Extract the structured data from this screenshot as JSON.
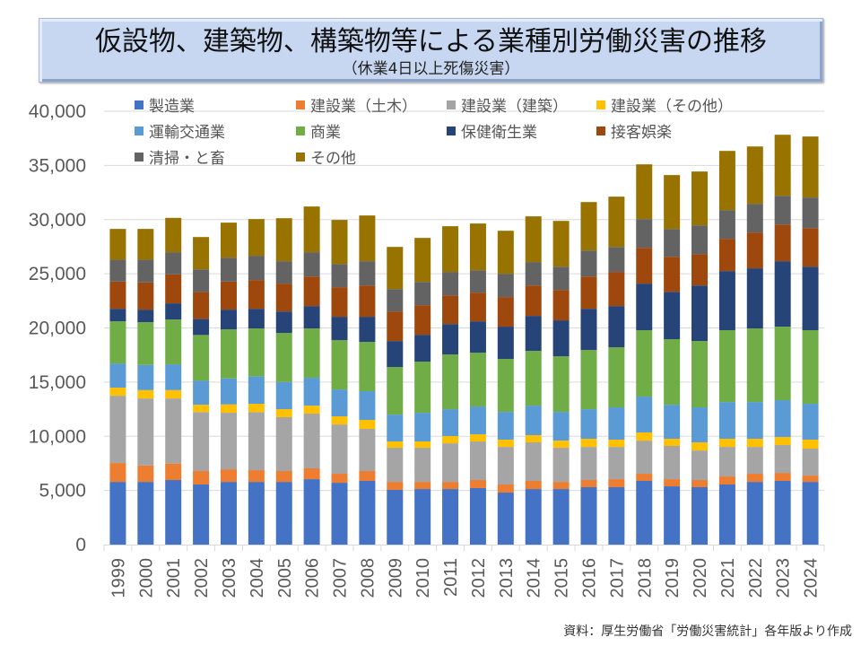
{
  "header": {
    "title": "仮設物、建築物、構築物等による業種別労働災害の推移",
    "subtitle": "（休業4日以上死傷災害）"
  },
  "footer": {
    "source": "資料：厚生労働省「労働災害統計」各年版より作成"
  },
  "chart_data": {
    "type": "bar",
    "stacked": true,
    "title": "仮設物、建築物、構築物等による業種別労働災害の推移",
    "subtitle": "（休業4日以上死傷災害）",
    "xlabel": "",
    "ylabel": "",
    "ylim": [
      0,
      40000
    ],
    "yticks": [
      0,
      5000,
      10000,
      15000,
      20000,
      25000,
      30000,
      35000,
      40000
    ],
    "ytick_labels": [
      "0",
      "5,000",
      "10,000",
      "15,000",
      "20,000",
      "25,000",
      "30,000",
      "35,000",
      "40,000"
    ],
    "grid": true,
    "legend_position": "top",
    "categories": [
      "1999",
      "2000",
      "2001",
      "2002",
      "2003",
      "2004",
      "2005",
      "2006",
      "2007",
      "2008",
      "2009",
      "2010",
      "2011",
      "2012",
      "2013",
      "2014",
      "2015",
      "2016",
      "2017",
      "2018",
      "2019",
      "2020",
      "2021",
      "2022",
      "2023",
      "2024"
    ],
    "series": [
      {
        "name": "製造業",
        "color": "#4472C4",
        "values": [
          5790,
          5790,
          5960,
          5550,
          5790,
          5790,
          5790,
          6040,
          5710,
          5880,
          5050,
          5130,
          5130,
          5220,
          4800,
          5130,
          5130,
          5300,
          5300,
          5880,
          5380,
          5300,
          5550,
          5790,
          5880,
          5790
        ]
      },
      {
        "name": "建設業（土木）",
        "color": "#ED7D31",
        "values": [
          1740,
          1520,
          1520,
          1240,
          1160,
          1080,
          1000,
          1000,
          830,
          910,
          740,
          660,
          660,
          740,
          750,
          750,
          660,
          660,
          740,
          660,
          660,
          660,
          740,
          750,
          740,
          580
        ]
      },
      {
        "name": "建設業（建築）",
        "color": "#A5A5A5",
        "values": [
          6210,
          6180,
          6010,
          5440,
          5220,
          5360,
          4970,
          5050,
          4550,
          3890,
          3150,
          3150,
          3560,
          3560,
          3470,
          3560,
          3150,
          3060,
          2980,
          3060,
          3070,
          2730,
          2730,
          2480,
          2570,
          2490
        ]
      },
      {
        "name": "建設業（その他）",
        "color": "#FFC000",
        "values": [
          750,
          770,
          770,
          680,
          770,
          770,
          740,
          740,
          750,
          830,
          580,
          580,
          670,
          660,
          670,
          660,
          660,
          750,
          670,
          750,
          660,
          750,
          750,
          750,
          740,
          830
        ]
      },
      {
        "name": "運輸交通業",
        "color": "#5B9BD5",
        "values": [
          2230,
          2320,
          2380,
          2210,
          2400,
          2540,
          2510,
          2570,
          2480,
          2650,
          2480,
          2650,
          2480,
          2570,
          2560,
          2730,
          2650,
          2730,
          2980,
          3310,
          3140,
          3230,
          3390,
          3390,
          3400,
          3310
        ]
      },
      {
        "name": "商業",
        "color": "#70AD47",
        "values": [
          3890,
          3950,
          4140,
          4230,
          4530,
          4410,
          4530,
          4550,
          4550,
          4550,
          4390,
          4720,
          5050,
          4970,
          4890,
          5050,
          5130,
          5460,
          5540,
          6130,
          6050,
          6120,
          6630,
          6790,
          6790,
          6790
        ]
      },
      {
        "name": "保健衛生業",
        "color": "#264478",
        "values": [
          1160,
          1160,
          1490,
          1490,
          1820,
          1820,
          1980,
          2070,
          2160,
          2320,
          2400,
          2480,
          2810,
          2890,
          2980,
          3230,
          3320,
          3810,
          3810,
          4300,
          4380,
          5130,
          5460,
          5550,
          6040,
          5870
        ]
      },
      {
        "name": "接客娯楽",
        "color": "#9E480E",
        "values": [
          2510,
          2510,
          2670,
          2480,
          2590,
          2650,
          2570,
          2730,
          2730,
          2890,
          2730,
          2730,
          2650,
          2650,
          2730,
          2810,
          2810,
          2980,
          3150,
          3310,
          3230,
          2900,
          2980,
          3310,
          3390,
          3560
        ]
      },
      {
        "name": "清掃・と畜",
        "color": "#636363",
        "values": [
          2020,
          2100,
          2050,
          2090,
          2210,
          2240,
          2070,
          2240,
          2150,
          2240,
          2070,
          2150,
          2160,
          2070,
          2150,
          2160,
          2150,
          2400,
          2310,
          2650,
          2570,
          2650,
          2650,
          2650,
          2650,
          2820
        ]
      },
      {
        "name": "その他",
        "color": "#997300",
        "values": [
          2840,
          2840,
          3170,
          2980,
          3230,
          3390,
          3970,
          4220,
          4060,
          4220,
          3890,
          4060,
          4220,
          4310,
          3970,
          4220,
          4220,
          4470,
          4640,
          5050,
          4970,
          4970,
          5460,
          5290,
          5630,
          5630
        ]
      }
    ]
  }
}
